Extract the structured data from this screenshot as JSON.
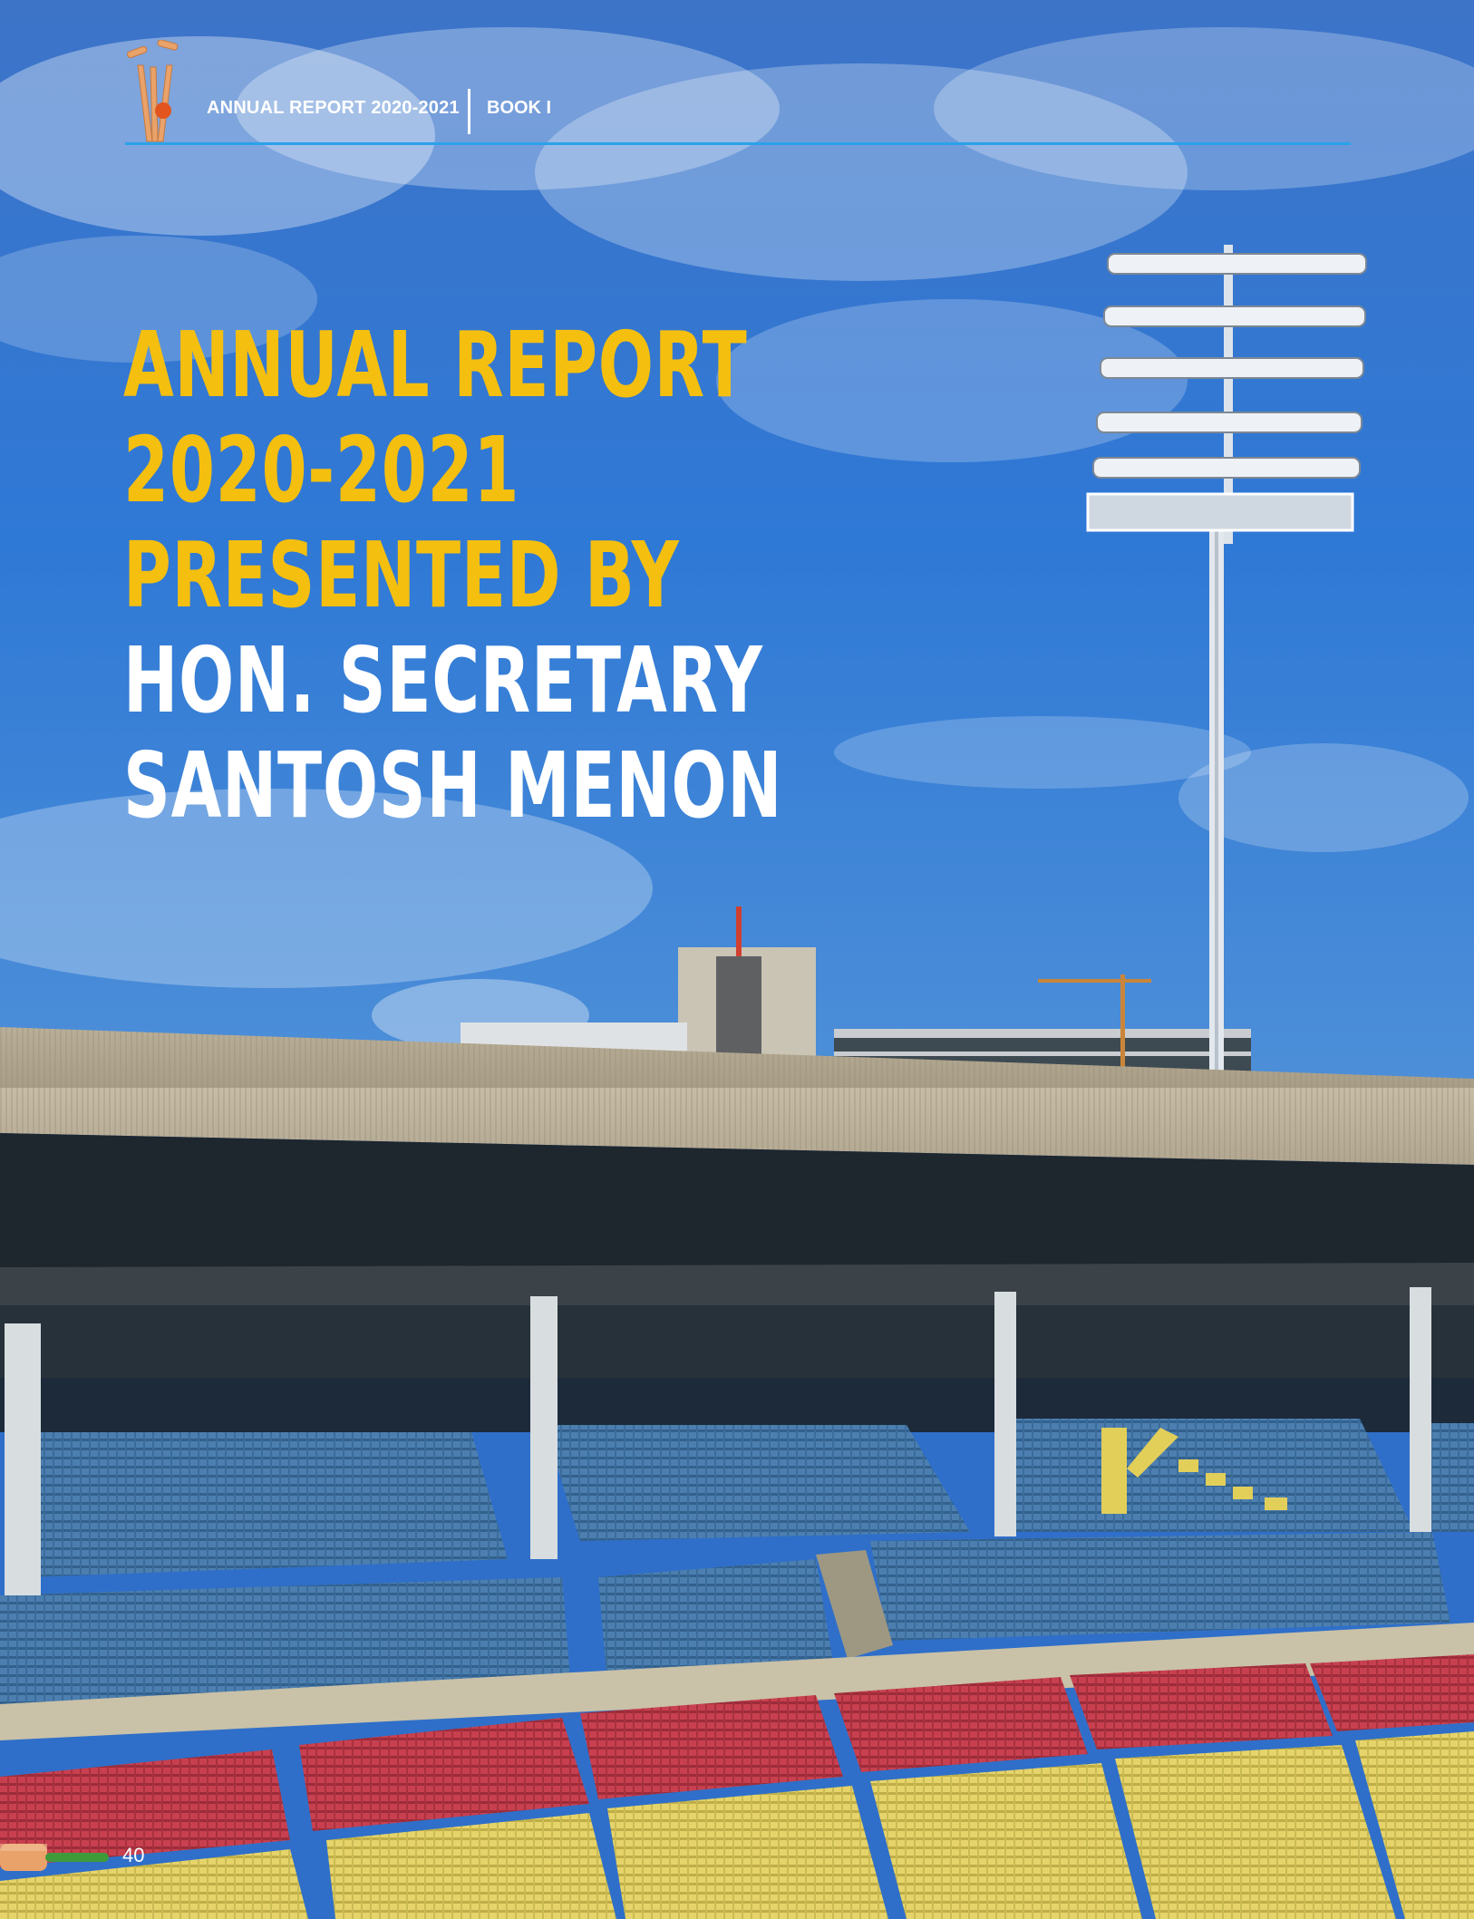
{
  "header": {
    "report_title": "ANNUAL REPORT 2020-2021",
    "book": "BOOK I",
    "logo_icon": "cricket-wicket-logo-icon",
    "rule_color": "#2aa2ea"
  },
  "cover": {
    "lines": [
      {
        "text": "ANNUAL REPORT",
        "color": "#f5bf0f"
      },
      {
        "text": "2020-2021",
        "color": "#f5bf0f"
      },
      {
        "text": "PRESENTED BY",
        "color": "#f5bf0f"
      },
      {
        "text": "HON. SECRETARY",
        "color": "#ffffff"
      },
      {
        "text": "SANTOSH MENON",
        "color": "#ffffff"
      }
    ],
    "background": "cricket-stadium-photo"
  },
  "footer": {
    "page_number": "40",
    "tab_icon": "cricket-bat-icon"
  }
}
